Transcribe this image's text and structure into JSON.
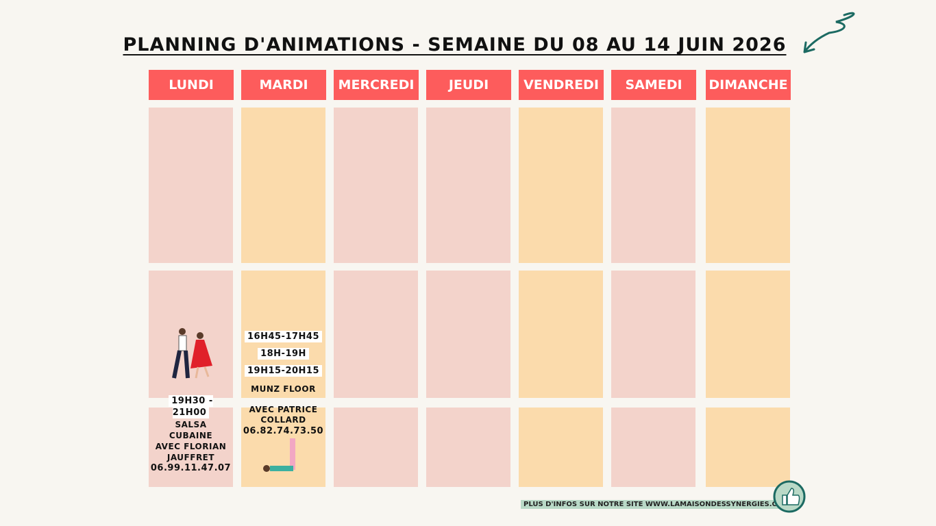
{
  "title": "PLANNING D'ANIMATIONS - SEMAINE DU 08 AU 14 JUIN 2026",
  "days": [
    "LUNDI",
    "MARDI",
    "MERCREDI",
    "JEUDI",
    "VENDREDI",
    "SAMEDI",
    "DIMANCHE"
  ],
  "lundi": {
    "time": "19H30 - 21H00",
    "activity": "SALSA CUBAINE",
    "host": "AVEC FLORIAN JAUFFRET",
    "phone": "06.99.11.47.07"
  },
  "mardi": {
    "times": [
      "16H45-17H45",
      "18H-19H",
      "19H15-20H15"
    ],
    "activity": "MUNZ FLOOR",
    "host": "AVEC PATRICE COLLARD",
    "phone": "06.82.74.73.50"
  },
  "footer": "PLUS D'INFOS SUR NOTRE SITE WWW.LAMAISONDESSYNERGIES.COM"
}
